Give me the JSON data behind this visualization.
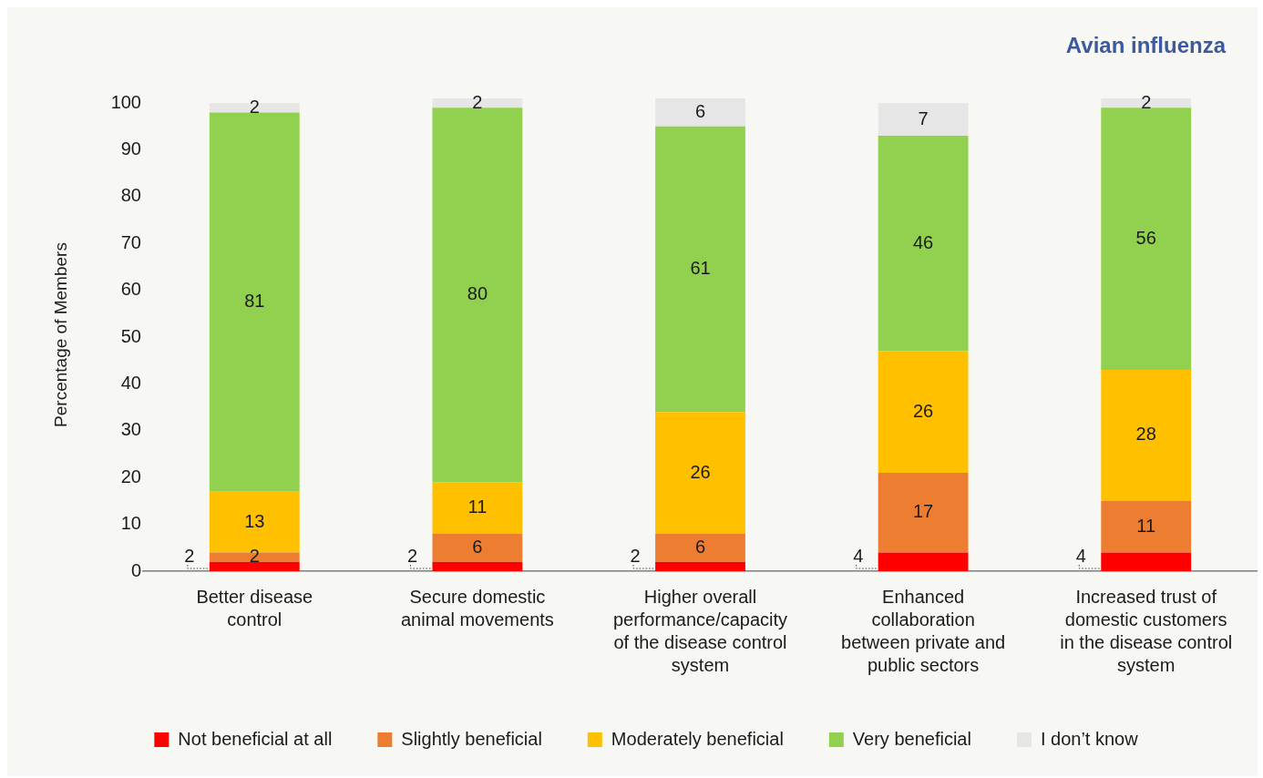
{
  "chart_data": {
    "type": "bar",
    "title": "Avian influenza",
    "ylabel": "Percentage of Members",
    "categories": [
      "Better disease control",
      "Secure domestic animal movements",
      "Higher overall performance/capacity of the disease control system",
      "Enhanced collaboration between private and public sectors",
      "Increased trust of domestic customers in the disease control system"
    ],
    "series": [
      {
        "name": "Not beneficial at all",
        "color": "#ff0000",
        "values": [
          2,
          2,
          2,
          4,
          4
        ]
      },
      {
        "name": "Slightly beneficial",
        "color": "#ed7d31",
        "values": [
          2,
          6,
          6,
          17,
          11
        ]
      },
      {
        "name": "Moderately beneficial",
        "color": "#ffc000",
        "values": [
          13,
          11,
          26,
          26,
          28
        ]
      },
      {
        "name": "Very beneficial",
        "color": "#92d050",
        "values": [
          81,
          80,
          61,
          46,
          56
        ]
      },
      {
        "name": "I don’t know",
        "color": "#e6e6e6",
        "values": [
          2,
          2,
          6,
          7,
          2
        ]
      }
    ],
    "stacked": true,
    "ylim": [
      0,
      101
    ],
    "yticks": [
      0,
      10,
      20,
      30,
      40,
      50,
      60,
      70,
      80,
      90,
      100
    ],
    "data_labels": true,
    "legend": "bottom"
  }
}
